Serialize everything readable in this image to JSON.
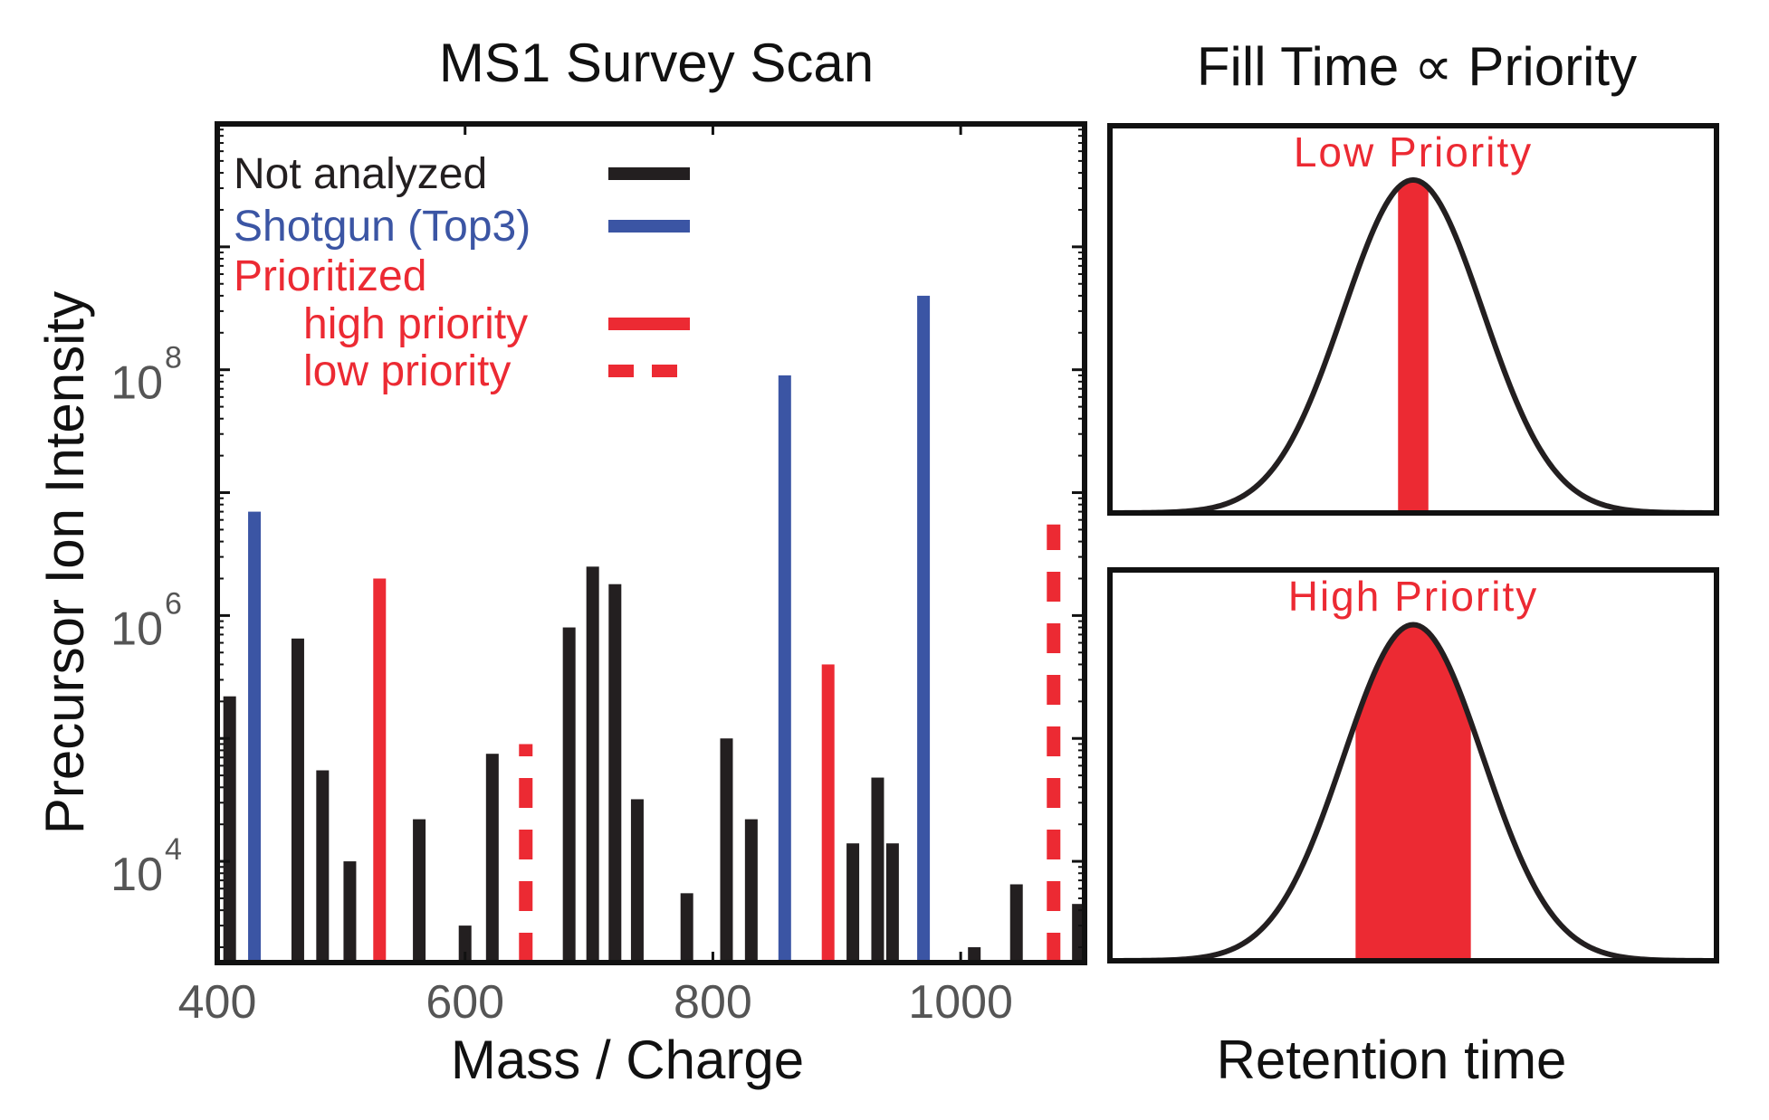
{
  "chart_data": [
    {
      "type": "bar",
      "title": "MS1 Survey Scan",
      "xlabel": "Mass / Charge",
      "ylabel": "Precursor Ion Intensity",
      "yscale": "log",
      "xlim": [
        400,
        1100
      ],
      "ylim": [
        1500,
        10000000000
      ],
      "x_ticks": [
        400,
        600,
        800,
        1000
      ],
      "x_tick_labels": [
        "400",
        "600",
        "800",
        "1000"
      ],
      "y_ticks": [
        10000,
        1000000,
        100000000
      ],
      "y_tick_labels": [
        {
          "base": "10",
          "exp": "4"
        },
        {
          "base": "10",
          "exp": "6"
        },
        {
          "base": "10",
          "exp": "8"
        }
      ],
      "grid": false,
      "legend": {
        "position": "top-left",
        "entries": [
          {
            "label": "Not analyzed",
            "category": "not_analyzed",
            "style": "solid",
            "indent": false
          },
          {
            "label": "Shotgun (Top3)",
            "category": "shotgun",
            "style": "solid",
            "indent": false
          },
          {
            "label": "Prioritized",
            "category": "prioritized",
            "style": "none",
            "indent": false
          },
          {
            "label": "high priority",
            "category": "high",
            "style": "solid",
            "indent": true
          },
          {
            "label": "low priority",
            "category": "low",
            "style": "dashed",
            "indent": true
          }
        ]
      },
      "colors": {
        "not_analyzed": "#231f20",
        "shotgun": "#3b55a4",
        "high": "#ec2a33",
        "low": "#ec2a33",
        "axis": "#111111",
        "tick_label": "#555555"
      },
      "series": [
        {
          "name": "Not analyzed",
          "category": "not_analyzed",
          "points": [
            {
              "x": 410,
              "y": 220000
            },
            {
              "x": 465,
              "y": 650000
            },
            {
              "x": 485,
              "y": 55000
            },
            {
              "x": 507,
              "y": 10000
            },
            {
              "x": 563,
              "y": 22000
            },
            {
              "x": 600,
              "y": 3000
            },
            {
              "x": 622,
              "y": 75000
            },
            {
              "x": 684,
              "y": 800000
            },
            {
              "x": 703,
              "y": 2500000
            },
            {
              "x": 721,
              "y": 1800000
            },
            {
              "x": 739,
              "y": 32000
            },
            {
              "x": 779,
              "y": 5500
            },
            {
              "x": 811,
              "y": 100000
            },
            {
              "x": 831,
              "y": 22000
            },
            {
              "x": 913,
              "y": 14000
            },
            {
              "x": 933,
              "y": 48000
            },
            {
              "x": 945,
              "y": 14000
            },
            {
              "x": 1011,
              "y": 2000
            },
            {
              "x": 1045,
              "y": 6500
            },
            {
              "x": 1095,
              "y": 4500
            }
          ]
        },
        {
          "name": "Shotgun (Top3)",
          "category": "shotgun",
          "points": [
            {
              "x": 430,
              "y": 7000000
            },
            {
              "x": 858,
              "y": 90000000
            },
            {
              "x": 970,
              "y": 400000000
            }
          ]
        },
        {
          "name": "high priority",
          "category": "high",
          "points": [
            {
              "x": 531,
              "y": 2000000
            },
            {
              "x": 893,
              "y": 400000
            }
          ]
        },
        {
          "name": "low priority",
          "category": "low",
          "points": [
            {
              "x": 649,
              "y": 90000
            },
            {
              "x": 1075,
              "y": 5500000
            }
          ]
        }
      ]
    },
    {
      "type": "area",
      "title": "Fill Time ∝ Priority",
      "xlabel": "Retention time",
      "ylabel": "",
      "panels": [
        {
          "label": "Low Priority",
          "peak_center": 0.5,
          "peak_sigma": 0.115,
          "peak_height": 0.86,
          "fill_from": 0.475,
          "fill_to": 0.525,
          "fill_color": "#ec2a33"
        },
        {
          "label": "High Priority",
          "peak_center": 0.5,
          "peak_sigma": 0.115,
          "peak_height": 0.86,
          "fill_from": 0.405,
          "fill_to": 0.595,
          "fill_color": "#ec2a33"
        }
      ],
      "curve_color": "#231f20",
      "label_color": "#ec2a33"
    }
  ]
}
